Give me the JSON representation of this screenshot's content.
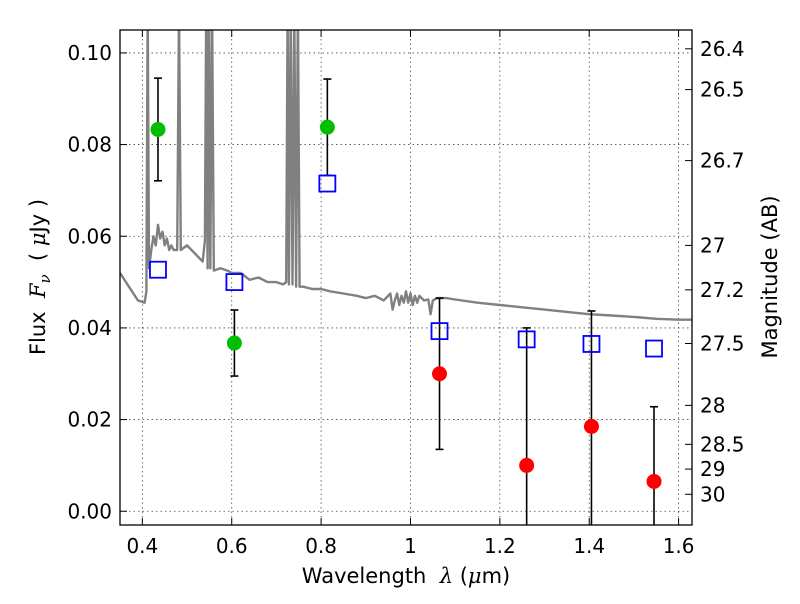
{
  "chart_data": {
    "type": "scatter",
    "xlabel": "Wavelength",
    "xlabel_symbol": "λ",
    "xlabel_unit_open": " (",
    "xlabel_unit_mu": "μ",
    "xlabel_unit_close": "m)",
    "ylabel": "Flux",
    "ylabel_symbol": "F",
    "ylabel_subscript": "ν",
    "ylabel_unit_open": "( ",
    "ylabel_unit_mu": "μ",
    "ylabel_unit_close": "Jy )",
    "y2label": "Magnitude (AB)",
    "xlim": [
      0.35,
      1.63
    ],
    "ylim": [
      -0.003,
      0.105
    ],
    "grid": true,
    "x_ticks": [
      0.4,
      0.6,
      0.8,
      1.0,
      1.2,
      1.4,
      1.6
    ],
    "x_tick_labels": [
      "0.4",
      "0.6",
      "0.8",
      "1",
      "1.2",
      "1.4",
      "1.6"
    ],
    "y_ticks": [
      0.0,
      0.02,
      0.04,
      0.06,
      0.08,
      0.1
    ],
    "y_tick_labels": [
      "0.00",
      "0.02",
      "0.04",
      "0.06",
      "0.08",
      "0.10"
    ],
    "y2_ticks": [
      {
        "label": "26.4",
        "flux": 0.1009
      },
      {
        "label": "26.5",
        "flux": 0.092
      },
      {
        "label": "26.7",
        "flux": 0.0765
      },
      {
        "label": "27",
        "flux": 0.058
      },
      {
        "label": "27.2",
        "flux": 0.0483
      },
      {
        "label": "27.5",
        "flux": 0.0366
      },
      {
        "label": "28",
        "flux": 0.0231
      },
      {
        "label": "28.5",
        "flux": 0.0146
      },
      {
        "label": "29",
        "flux": 0.0092
      },
      {
        "label": "30",
        "flux": 0.0037
      }
    ],
    "series": [
      {
        "kind": "detections",
        "color": "#00bf00",
        "marker": "circle",
        "points": [
          {
            "x": 0.435,
            "y": 0.0833,
            "err": 0.0112
          },
          {
            "x": 0.606,
            "y": 0.0367,
            "err": 0.0072
          },
          {
            "x": 0.814,
            "y": 0.0838,
            "err": 0.0105
          }
        ]
      },
      {
        "kind": "non_detections",
        "color": "#ff0000",
        "marker": "circle",
        "points": [
          {
            "x": 1.065,
            "y": 0.03,
            "err": 0.0165
          },
          {
            "x": 1.26,
            "y": 0.01,
            "err": 0.03
          },
          {
            "x": 1.405,
            "y": 0.0185,
            "err": 0.0252
          },
          {
            "x": 1.545,
            "y": 0.0065,
            "err": 0.0163
          }
        ]
      },
      {
        "kind": "model_bandpass",
        "color": "#0000ff",
        "marker": "square",
        "points": [
          {
            "x": 0.435,
            "y": 0.0527
          },
          {
            "x": 0.606,
            "y": 0.05
          },
          {
            "x": 0.814,
            "y": 0.0715
          },
          {
            "x": 1.065,
            "y": 0.0393
          },
          {
            "x": 1.26,
            "y": 0.0375
          },
          {
            "x": 1.405,
            "y": 0.0365
          },
          {
            "x": 1.545,
            "y": 0.0355
          }
        ]
      },
      {
        "kind": "model_spectrum",
        "color": "#808080",
        "line": [
          [
            0.35,
            0.052
          ],
          [
            0.37,
            0.049
          ],
          [
            0.39,
            0.046
          ],
          [
            0.405,
            0.0455
          ],
          [
            0.409,
            0.048
          ],
          [
            0.412,
            0.11
          ],
          [
            0.415,
            0.053
          ],
          [
            0.42,
            0.057
          ],
          [
            0.425,
            0.06
          ],
          [
            0.43,
            0.058
          ],
          [
            0.435,
            0.0625
          ],
          [
            0.44,
            0.0595
          ],
          [
            0.445,
            0.061
          ],
          [
            0.45,
            0.058
          ],
          [
            0.455,
            0.0595
          ],
          [
            0.46,
            0.057
          ],
          [
            0.465,
            0.058
          ],
          [
            0.47,
            0.057
          ],
          [
            0.478,
            0.057
          ],
          [
            0.482,
            0.11
          ],
          [
            0.486,
            0.057
          ],
          [
            0.5,
            0.058
          ],
          [
            0.52,
            0.056
          ],
          [
            0.535,
            0.0545
          ],
          [
            0.54,
            0.059
          ],
          [
            0.543,
            0.11
          ],
          [
            0.546,
            0.053
          ],
          [
            0.549,
            0.11
          ],
          [
            0.552,
            0.053
          ],
          [
            0.556,
            0.11
          ],
          [
            0.56,
            0.0525
          ],
          [
            0.575,
            0.053
          ],
          [
            0.59,
            0.0525
          ],
          [
            0.6,
            0.052
          ],
          [
            0.62,
            0.052
          ],
          [
            0.64,
            0.0505
          ],
          [
            0.66,
            0.051
          ],
          [
            0.68,
            0.05
          ],
          [
            0.7,
            0.05
          ],
          [
            0.715,
            0.0495
          ],
          [
            0.722,
            0.05
          ],
          [
            0.725,
            0.11
          ],
          [
            0.728,
            0.0495
          ],
          [
            0.732,
            0.11
          ],
          [
            0.736,
            0.0495
          ],
          [
            0.74,
            0.11
          ],
          [
            0.744,
            0.049
          ],
          [
            0.748,
            0.11
          ],
          [
            0.752,
            0.049
          ],
          [
            0.76,
            0.049
          ],
          [
            0.78,
            0.0485
          ],
          [
            0.8,
            0.0485
          ],
          [
            0.82,
            0.048
          ],
          [
            0.85,
            0.0475
          ],
          [
            0.88,
            0.047
          ],
          [
            0.9,
            0.0465
          ],
          [
            0.92,
            0.047
          ],
          [
            0.94,
            0.046
          ],
          [
            0.955,
            0.0475
          ],
          [
            0.96,
            0.044
          ],
          [
            0.965,
            0.046
          ],
          [
            0.97,
            0.0475
          ],
          [
            0.975,
            0.045
          ],
          [
            0.98,
            0.047
          ],
          [
            0.985,
            0.0455
          ],
          [
            0.99,
            0.048
          ],
          [
            0.995,
            0.0455
          ],
          [
            1.0,
            0.0475
          ],
          [
            1.005,
            0.045
          ],
          [
            1.01,
            0.047
          ],
          [
            1.015,
            0.0455
          ],
          [
            1.02,
            0.047
          ],
          [
            1.03,
            0.046
          ],
          [
            1.04,
            0.0462
          ],
          [
            1.045,
            0.043
          ],
          [
            1.05,
            0.046
          ],
          [
            1.06,
            0.0465
          ],
          [
            1.08,
            0.0465
          ],
          [
            1.1,
            0.0462
          ],
          [
            1.15,
            0.0455
          ],
          [
            1.2,
            0.045
          ],
          [
            1.25,
            0.0445
          ],
          [
            1.3,
            0.044
          ],
          [
            1.35,
            0.0435
          ],
          [
            1.4,
            0.043
          ],
          [
            1.45,
            0.0427
          ],
          [
            1.5,
            0.0424
          ],
          [
            1.55,
            0.042
          ],
          [
            1.6,
            0.0418
          ],
          [
            1.63,
            0.0418
          ]
        ]
      }
    ]
  }
}
